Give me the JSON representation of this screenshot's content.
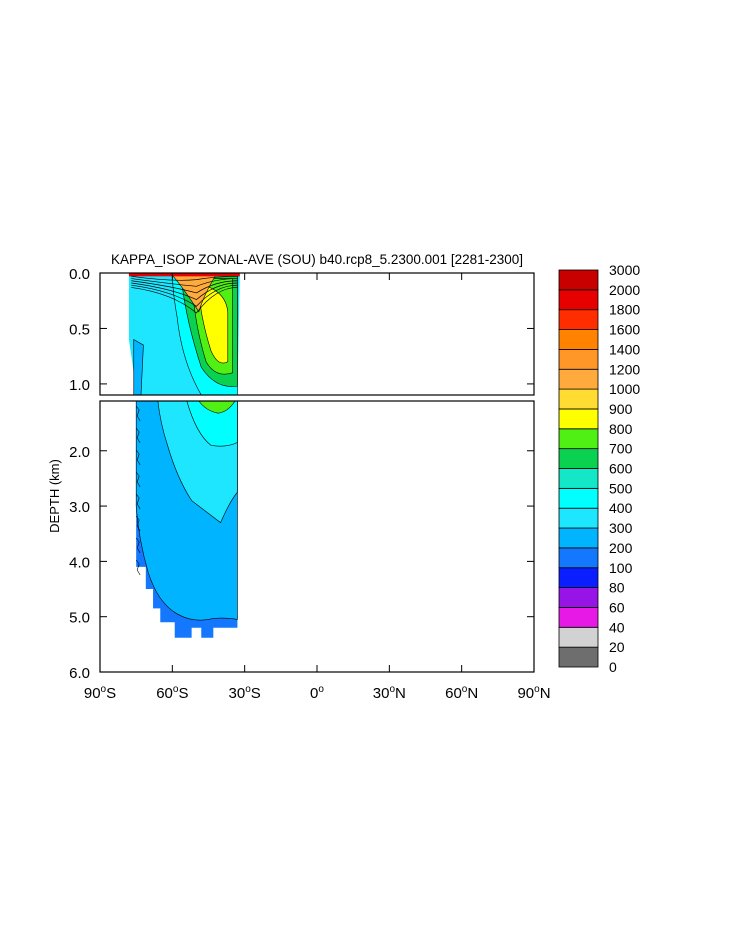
{
  "chart_data": {
    "type": "heatmap",
    "title": "KAPPA_ISOP ZONAL-AVE (SOU) b40.rcp8_5.2300.001 [2281-2300]",
    "ylabel": "DEPTH (km)",
    "xlabel": "",
    "xlim": [
      -90,
      90
    ],
    "upper_panel": {
      "ylim": [
        0.0,
        1.1
      ],
      "yticks": [
        "0.0",
        "0.5",
        "1.0"
      ],
      "ytick_values": [
        0.0,
        0.5,
        1.0
      ]
    },
    "lower_panel": {
      "ylim": [
        1.1,
        6.0
      ],
      "yticks": [
        "2.0",
        "3.0",
        "4.0",
        "5.0",
        "6.0"
      ],
      "ytick_values": [
        2.0,
        3.0,
        4.0,
        5.0,
        6.0
      ]
    },
    "xticks": [
      {
        "value": -90,
        "num": "90",
        "hemi": "S"
      },
      {
        "value": -60,
        "num": "60",
        "hemi": "S"
      },
      {
        "value": -30,
        "num": "30",
        "hemi": "S"
      },
      {
        "value": 0,
        "num": "0",
        "hemi": ""
      },
      {
        "value": 30,
        "num": "30",
        "hemi": "N"
      },
      {
        "value": 60,
        "num": "60",
        "hemi": "N"
      },
      {
        "value": 90,
        "num": "90",
        "hemi": "N"
      }
    ],
    "colorbar": {
      "labels": [
        "0",
        "20",
        "40",
        "60",
        "80",
        "100",
        "200",
        "300",
        "400",
        "500",
        "600",
        "700",
        "800",
        "900",
        "1000",
        "1200",
        "1400",
        "1600",
        "1800",
        "2000",
        "3000"
      ],
      "colors": [
        "#6e6e6e",
        "#d2d2d2",
        "#e619e6",
        "#9614e6",
        "#0a1eff",
        "#1478ff",
        "#00b4ff",
        "#1ee6ff",
        "#00ffff",
        "#14e6c8",
        "#0ad250",
        "#50f014",
        "#ffff00",
        "#ffdc32",
        "#ffaa3c",
        "#ff9628",
        "#ff8200",
        "#ff2d00",
        "#e60000",
        "#c80000"
      ]
    },
    "fields": {
      "lower_bg": {
        "color": "#00b4ff",
        "value_range": [
          200,
          300
        ]
      },
      "lower_mid": {
        "color": "#1ee6ff",
        "value_range": [
          300,
          400
        ]
      },
      "lower_top": {
        "color": "#00ffff",
        "value_range": [
          400,
          500
        ]
      },
      "bottom_edge": {
        "color": "#1478ff",
        "value_range": [
          100,
          200
        ]
      },
      "upper_bg": {
        "color": "#1ee6ff",
        "value_range": [
          300,
          400
        ]
      },
      "upper_green1": {
        "color": "#0ad250",
        "value_range": [
          600,
          700
        ]
      },
      "upper_green2": {
        "color": "#50f014",
        "value_range": [
          700,
          800
        ]
      },
      "upper_yellow": {
        "color": "#ffff00",
        "value_range": [
          800,
          900
        ]
      },
      "upper_orange": {
        "color": "#ffaa3c",
        "value_range": [
          1000,
          1200
        ]
      },
      "surface_red": {
        "color": "#e60000",
        "value_range": [
          1800,
          2000
        ]
      }
    }
  }
}
